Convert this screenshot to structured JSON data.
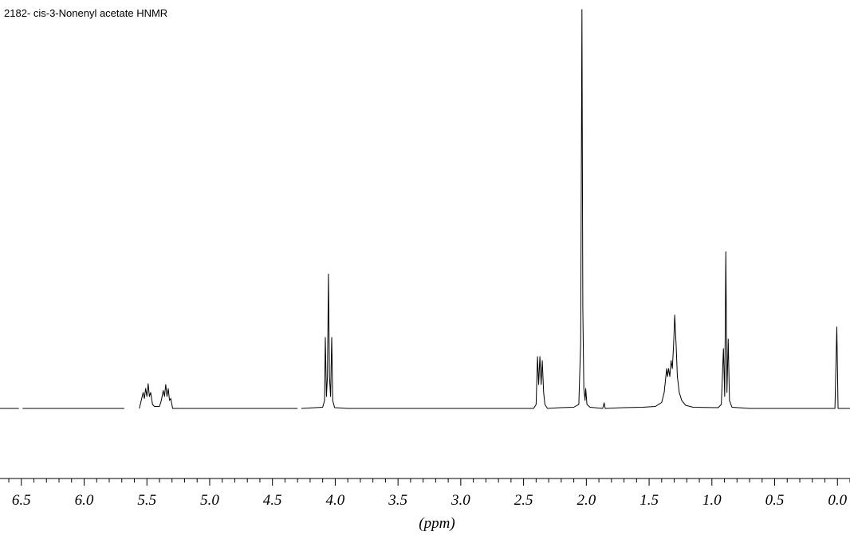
{
  "chart_data": {
    "type": "line",
    "title": "2182- cis-3-Nonenyl acetate HNMR",
    "x_label": "(ppm)",
    "xlim": [
      6.67,
      -0.1
    ],
    "ylim": [
      0,
      100
    ],
    "xticks": [
      6.5,
      {
        "value": 6,
        "label": "6.0"
      },
      5.5,
      {
        "value": 5,
        "label": "5.0"
      },
      4.5,
      {
        "value": 4,
        "label": "4.0"
      },
      3.5,
      {
        "value": 3,
        "label": "3.0"
      },
      2.5,
      {
        "value": 2,
        "label": "2.0"
      },
      1.5,
      {
        "value": 1,
        "label": "1.0"
      },
      0.5,
      {
        "value": 0,
        "label": "0.0"
      }
    ],
    "xminorticks": [
      6.6,
      6.4,
      6.3,
      6.2,
      6.1,
      5.9,
      5.8,
      5.7,
      5.6,
      5.4,
      5.3,
      5.2,
      5.1,
      4.9,
      4.8,
      4.7,
      4.6,
      4.4,
      4.3,
      4.2,
      4.1,
      3.9,
      3.8,
      3.7,
      3.6,
      3.4,
      3.3,
      3.2,
      3.1,
      2.9,
      2.8,
      2.7,
      2.6,
      2.4,
      2.3,
      2.2,
      2.1,
      1.9,
      1.8,
      1.7,
      1.6,
      1.4,
      1.3,
      1.2,
      1.1,
      0.9,
      0.8,
      0.7,
      0.6,
      0.4,
      0.3,
      0.2,
      0.1,
      -0.1
    ],
    "series": [
      {
        "color": "#000000",
        "x": [
          6.67,
          6.52,
          null,
          6.49,
          5.68,
          null,
          5.56,
          5.545,
          5.53,
          5.52,
          5.51,
          5.5,
          5.49,
          5.48,
          5.47,
          5.455,
          5.44,
          5.4,
          5.385,
          5.37,
          5.36,
          5.35,
          5.34,
          5.33,
          5.32,
          5.31,
          5.295,
          4.3,
          null,
          4.27,
          4.1,
          4.085,
          4.079,
          4.07,
          4.062,
          4.054,
          4.046,
          4.037,
          4.028,
          4.02,
          4.005,
          3.9,
          2.42,
          2.4,
          2.389,
          2.38,
          2.37,
          2.36,
          2.351,
          2.34,
          2.33,
          2.31,
          2.2,
          2.1,
          2.06,
          2.045,
          2.035,
          2.028,
          2.02,
          2.01,
          2.005,
          1.995,
          1.97,
          1.87,
          1.858,
          1.85,
          1.7,
          1.55,
          1.45,
          1.4,
          1.38,
          1.37,
          1.36,
          1.353,
          1.345,
          1.335,
          1.325,
          1.315,
          1.305,
          1.296,
          1.285,
          1.275,
          1.26,
          1.24,
          1.21,
          1.15,
          0.95,
          0.925,
          0.908,
          0.898,
          0.889,
          0.88,
          0.87,
          0.86,
          0.84,
          0.7,
          0.02,
          0.005,
          -0.005,
          -0.1
        ],
        "values": [
          0,
          0,
          null,
          0,
          0,
          null,
          0,
          2,
          4,
          2.5,
          5,
          3,
          6.2,
          3,
          4,
          1,
          0.5,
          0.5,
          2,
          4.5,
          3,
          6,
          3,
          5,
          2,
          2.5,
          0,
          0,
          null,
          0,
          0.3,
          2,
          17.8,
          3,
          8,
          33.7,
          8,
          3,
          17.8,
          2,
          0.2,
          0,
          0,
          1,
          13,
          6,
          13,
          6,
          12,
          4,
          1,
          0,
          0.2,
          0.3,
          1,
          16.6,
          100,
          25,
          5,
          2,
          5,
          1,
          0.3,
          0,
          1.4,
          0,
          0.2,
          0.3,
          0.5,
          1.5,
          4,
          7,
          10,
          8,
          10,
          8,
          12,
          10,
          16,
          23.4,
          16,
          8,
          4,
          2,
          0.8,
          0.3,
          0.2,
          1,
          15,
          3,
          39.3,
          4,
          17.4,
          2,
          0.3,
          0,
          0,
          20.4,
          0,
          0
        ]
      }
    ]
  }
}
